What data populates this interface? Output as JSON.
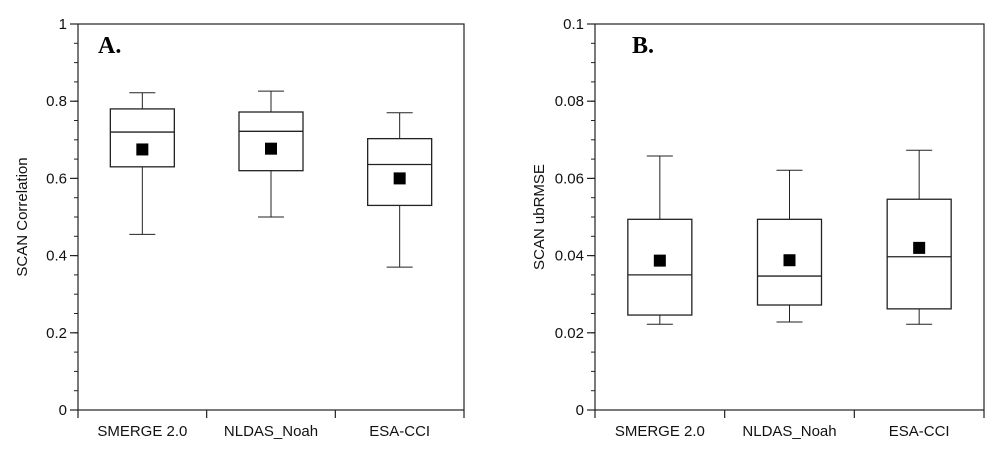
{
  "chart_data": [
    {
      "type": "box",
      "panel_label": "A.",
      "ylabel": "SCAN Correlation",
      "xlabel": "",
      "ylim": [
        0,
        1
      ],
      "y_major_ticks": [
        0,
        0.2,
        0.4,
        0.6,
        0.8,
        1
      ],
      "y_tick_labels": [
        "0",
        "0.2",
        "0.4",
        "0.6",
        "0.8",
        "1"
      ],
      "y_minor_step": 0.05,
      "categories": [
        "SMERGE 2.0",
        "NLDAS_Noah",
        "ESA-CCI"
      ],
      "boxes": [
        {
          "whisker_low": 0.455,
          "q1": 0.63,
          "median": 0.72,
          "q3": 0.78,
          "whisker_high": 0.822,
          "mean": 0.675
        },
        {
          "whisker_low": 0.5,
          "q1": 0.62,
          "median": 0.722,
          "q3": 0.772,
          "whisker_high": 0.826,
          "mean": 0.677
        },
        {
          "whisker_low": 0.37,
          "q1": 0.53,
          "median": 0.636,
          "q3": 0.703,
          "whisker_high": 0.77,
          "mean": 0.6
        }
      ],
      "grid": false
    },
    {
      "type": "box",
      "panel_label": "B.",
      "ylabel": "SCAN ubRMSE",
      "xlabel": "",
      "ylim": [
        0,
        0.1
      ],
      "y_major_ticks": [
        0,
        0.02,
        0.04,
        0.06,
        0.08,
        0.1
      ],
      "y_tick_labels": [
        "0",
        "0.02",
        "0.04",
        "0.06",
        "0.08",
        "0.1"
      ],
      "y_minor_step": 0.005,
      "categories": [
        "SMERGE 2.0",
        "NLDAS_Noah",
        "ESA-CCI"
      ],
      "boxes": [
        {
          "whisker_low": 0.0222,
          "q1": 0.0246,
          "median": 0.035,
          "q3": 0.0494,
          "whisker_high": 0.0658,
          "mean": 0.0387
        },
        {
          "whisker_low": 0.0228,
          "q1": 0.0272,
          "median": 0.0347,
          "q3": 0.0494,
          "whisker_high": 0.0621,
          "mean": 0.0388
        },
        {
          "whisker_low": 0.0222,
          "q1": 0.0262,
          "median": 0.0397,
          "q3": 0.0546,
          "whisker_high": 0.0673,
          "mean": 0.042
        }
      ],
      "grid": false
    }
  ]
}
